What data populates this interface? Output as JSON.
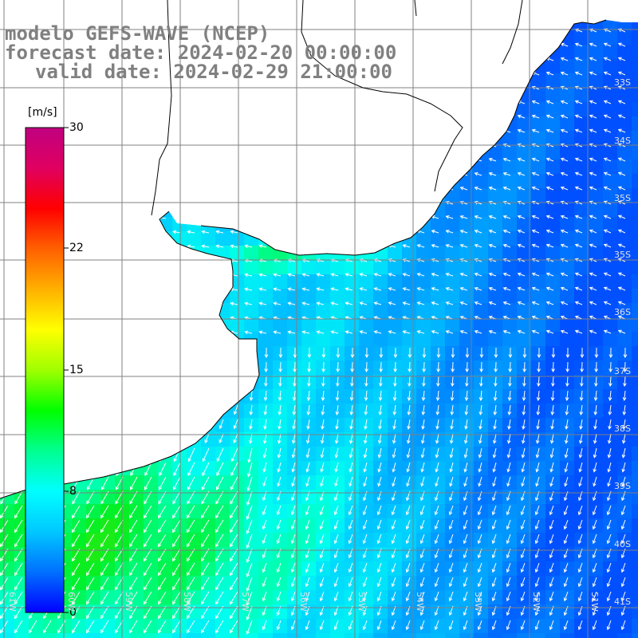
{
  "title": {
    "line1": "modelo GEFS-WAVE (NCEP)",
    "line2": "forecast date: 2024-02-20 00:00:00",
    "line3": "valid date: 2024-02-29 21:00:00"
  },
  "colorbar": {
    "unit": "[m/s]",
    "ticks": [
      "30",
      "22",
      "15",
      "8",
      "0"
    ],
    "tick_values": [
      30,
      22,
      15,
      8,
      0
    ],
    "range": [
      0,
      30
    ],
    "colors": [
      "#0000ff",
      "#0070ff",
      "#00c8ff",
      "#00ffff",
      "#00ff90",
      "#00ff00",
      "#a0ff00",
      "#ffff00",
      "#ffb000",
      "#ff6000",
      "#ff0000",
      "#e00060",
      "#c00080"
    ]
  },
  "map": {
    "lat_labels": [
      "33S",
      "34S",
      "35S",
      "36S",
      "37S",
      "38S",
      "39S",
      "40S",
      "41S"
    ],
    "lat_values": [
      -33,
      -34,
      -35,
      -36,
      -37,
      -38,
      -39,
      -40,
      -41
    ],
    "lon_labels": [
      "61W",
      "60W",
      "59W",
      "58W",
      "57W",
      "56W",
      "55W",
      "54W",
      "53W",
      "52W",
      "51W"
    ],
    "lon_values": [
      -61,
      -60,
      -59,
      -58,
      -57,
      -56,
      -55,
      -54,
      -53,
      -52,
      -51
    ],
    "land_color": "#ffffff",
    "grid_color": "#808080",
    "arrow_color": "#ffffff"
  }
}
